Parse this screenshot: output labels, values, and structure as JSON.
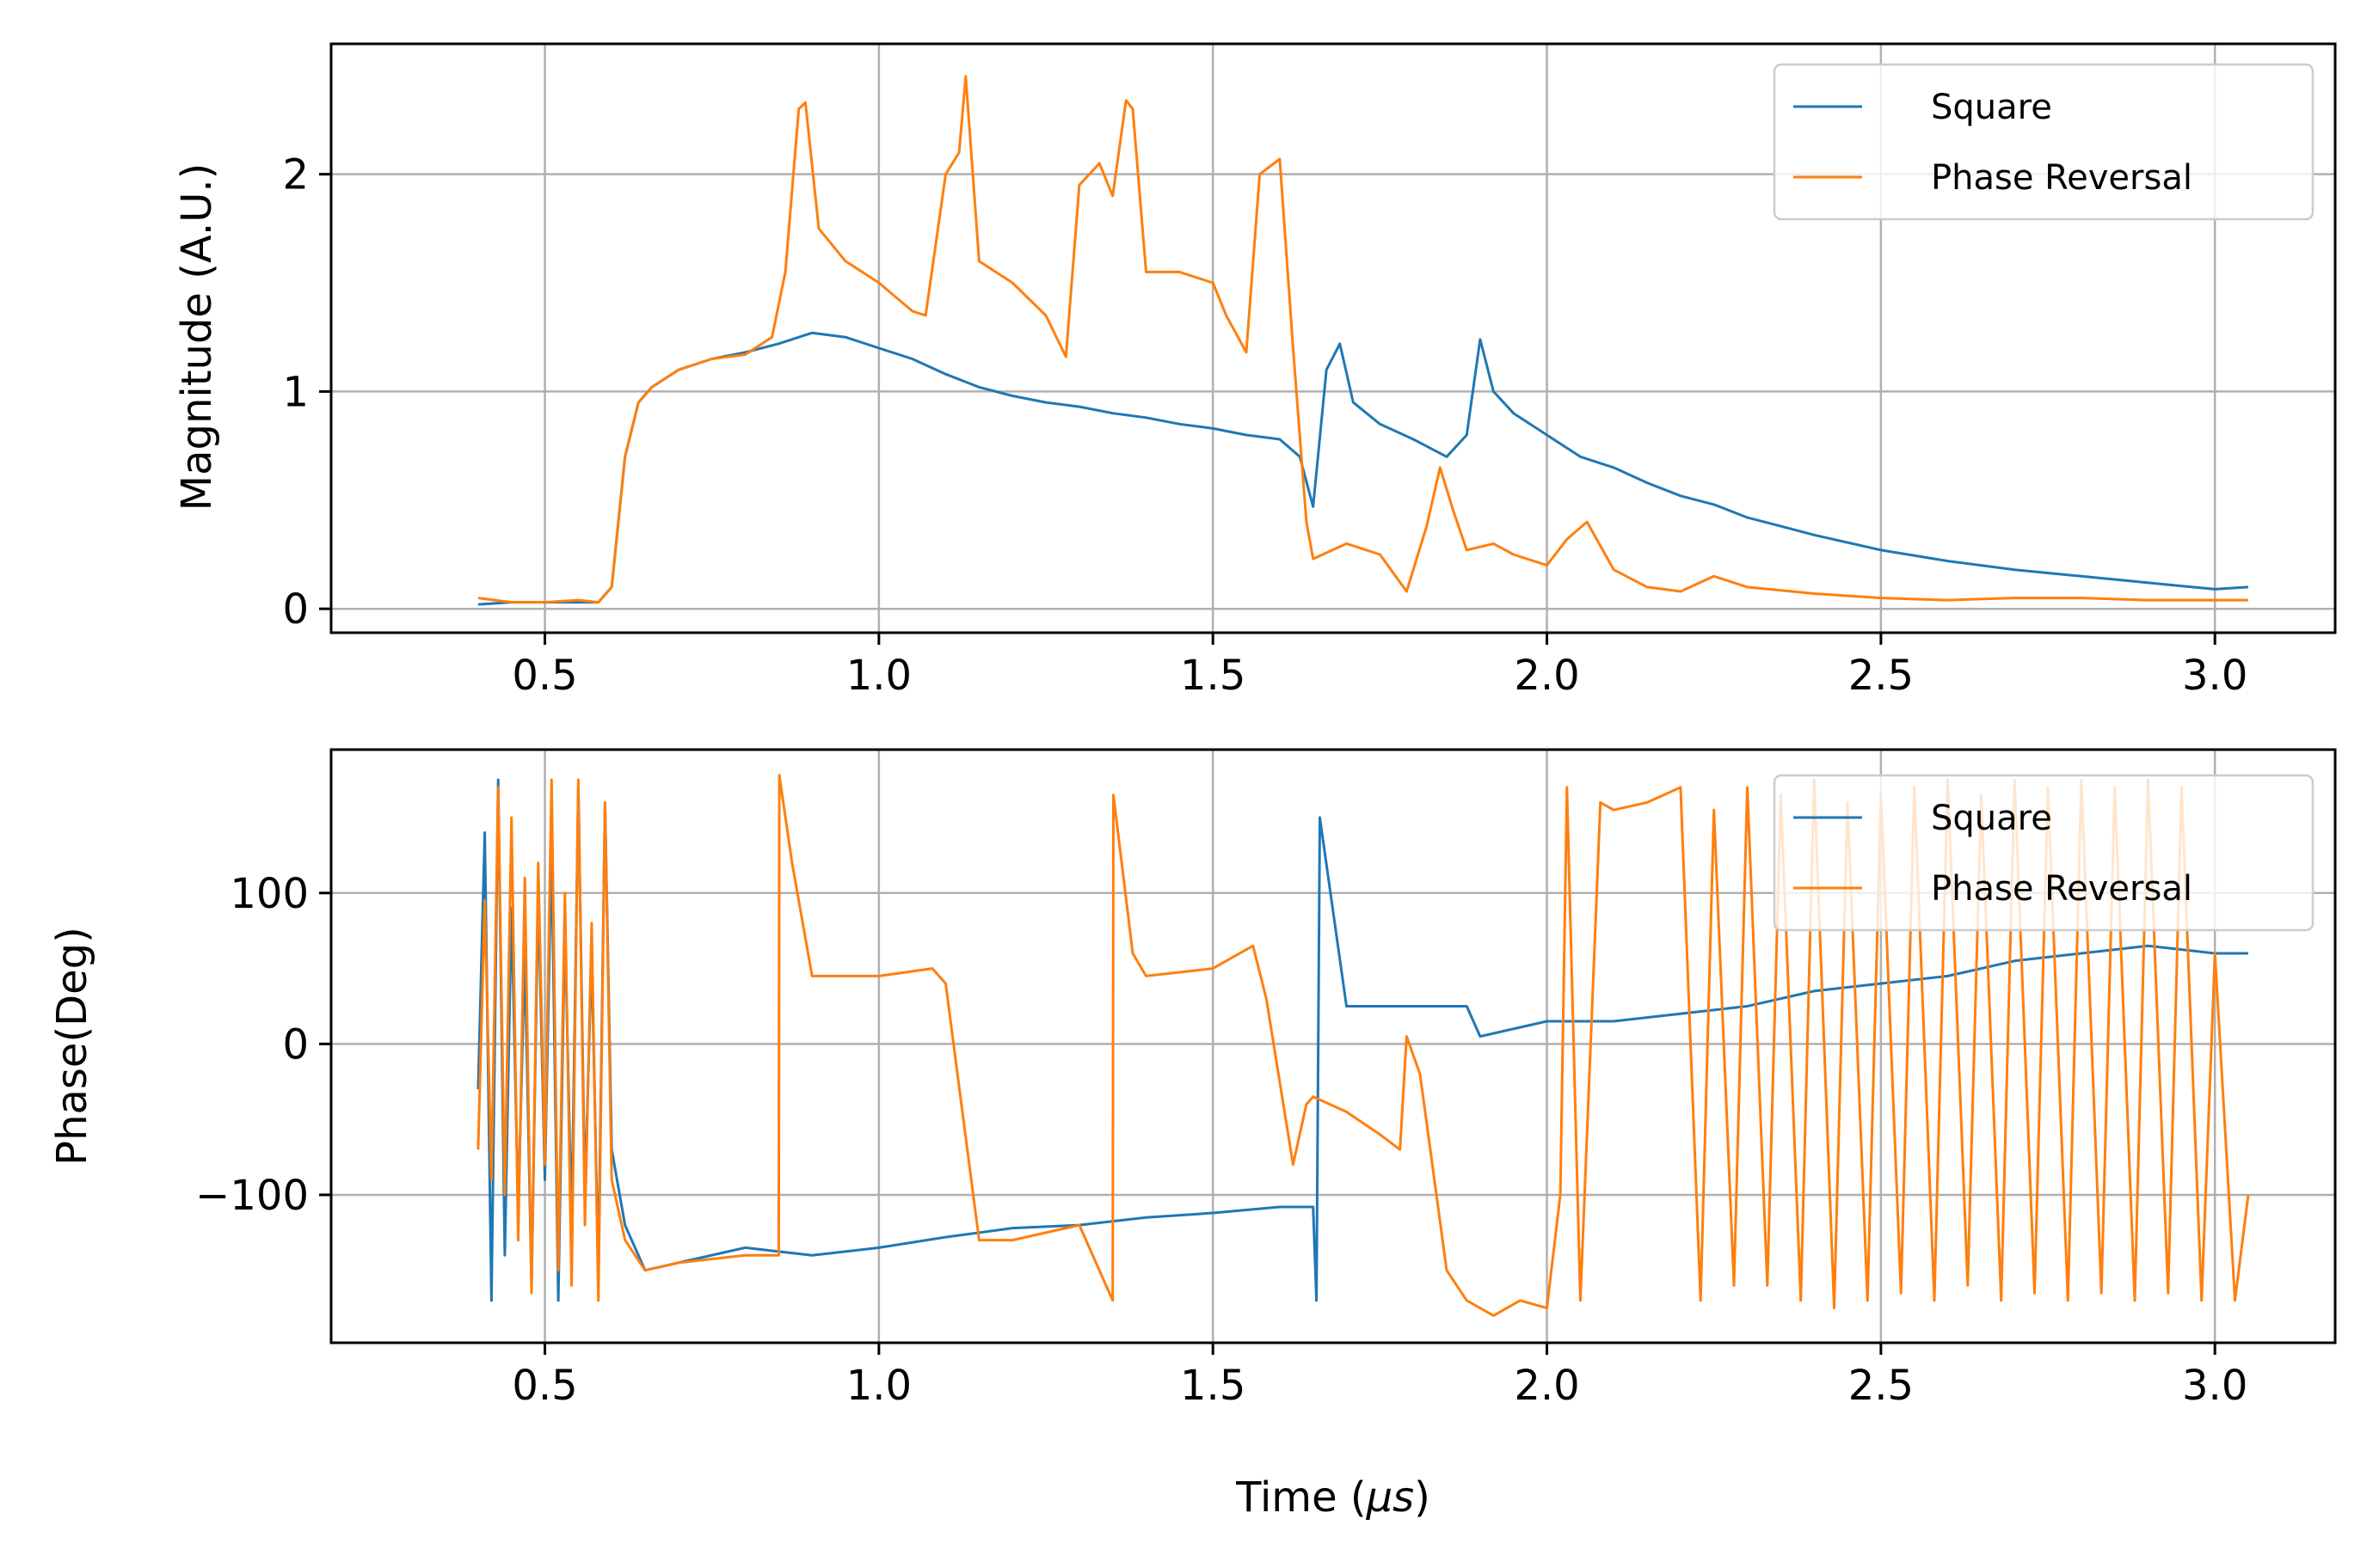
{
  "chart_data": [
    {
      "type": "line",
      "ylabel": "Magnitude (A.U.)",
      "xlabel": "",
      "xlim": [
        0.18,
        3.18
      ],
      "ylim": [
        -0.11,
        2.6
      ],
      "xticks": [
        0.5,
        1.0,
        1.5,
        2.0,
        2.5,
        3.0
      ],
      "xtick_labels": [
        "0.5",
        "1.0",
        "1.5",
        "2.0",
        "2.5",
        "3.0"
      ],
      "yticks": [
        0,
        1,
        2
      ],
      "ytick_labels": [
        "0",
        "1",
        "2"
      ],
      "grid": true,
      "legend_position": "top-right",
      "series": [
        {
          "name": "Square",
          "color": "#1f77b4",
          "x": [
            0.4,
            0.45,
            0.5,
            0.55,
            0.58,
            0.6,
            0.62,
            0.64,
            0.66,
            0.7,
            0.75,
            0.8,
            0.85,
            0.9,
            0.95,
            1.0,
            1.05,
            1.1,
            1.15,
            1.2,
            1.25,
            1.3,
            1.35,
            1.4,
            1.45,
            1.5,
            1.55,
            1.6,
            1.63,
            1.65,
            1.67,
            1.69,
            1.71,
            1.75,
            1.8,
            1.85,
            1.88,
            1.9,
            1.92,
            1.95,
            2.0,
            2.05,
            2.1,
            2.15,
            2.2,
            2.25,
            2.3,
            2.35,
            2.4,
            2.5,
            2.6,
            2.7,
            2.8,
            2.9,
            3.0,
            3.05
          ],
          "y": [
            0.02,
            0.03,
            0.03,
            0.03,
            0.03,
            0.1,
            0.7,
            0.95,
            1.02,
            1.1,
            1.15,
            1.18,
            1.22,
            1.27,
            1.25,
            1.2,
            1.15,
            1.08,
            1.02,
            0.98,
            0.95,
            0.93,
            0.9,
            0.88,
            0.85,
            0.83,
            0.8,
            0.78,
            0.7,
            0.47,
            1.1,
            1.22,
            0.95,
            0.85,
            0.78,
            0.7,
            0.8,
            1.24,
            1.0,
            0.9,
            0.8,
            0.7,
            0.65,
            0.58,
            0.52,
            0.48,
            0.42,
            0.38,
            0.34,
            0.27,
            0.22,
            0.18,
            0.15,
            0.12,
            0.09,
            0.1
          ]
        },
        {
          "name": "Phase Reversal",
          "color": "#ff7f0e",
          "x": [
            0.4,
            0.45,
            0.5,
            0.55,
            0.58,
            0.6,
            0.62,
            0.64,
            0.66,
            0.7,
            0.75,
            0.8,
            0.84,
            0.86,
            0.88,
            0.89,
            0.91,
            0.95,
            1.0,
            1.05,
            1.07,
            1.1,
            1.12,
            1.13,
            1.15,
            1.2,
            1.25,
            1.28,
            1.3,
            1.33,
            1.35,
            1.37,
            1.38,
            1.4,
            1.45,
            1.5,
            1.52,
            1.55,
            1.57,
            1.6,
            1.62,
            1.64,
            1.65,
            1.7,
            1.75,
            1.79,
            1.82,
            1.84,
            1.86,
            1.88,
            1.92,
            1.95,
            2.0,
            2.03,
            2.06,
            2.1,
            2.15,
            2.2,
            2.25,
            2.3,
            2.4,
            2.5,
            2.6,
            2.7,
            2.8,
            2.9,
            3.0,
            3.05
          ],
          "y": [
            0.05,
            0.03,
            0.03,
            0.04,
            0.03,
            0.1,
            0.7,
            0.95,
            1.02,
            1.1,
            1.15,
            1.17,
            1.25,
            1.55,
            2.3,
            2.33,
            1.75,
            1.6,
            1.5,
            1.37,
            1.35,
            2.0,
            2.1,
            2.45,
            1.6,
            1.5,
            1.35,
            1.16,
            1.95,
            2.05,
            1.9,
            2.34,
            2.3,
            1.55,
            1.55,
            1.5,
            1.35,
            1.18,
            2.0,
            2.07,
            1.2,
            0.4,
            0.23,
            0.3,
            0.25,
            0.08,
            0.38,
            0.65,
            0.45,
            0.27,
            0.3,
            0.25,
            0.2,
            0.32,
            0.4,
            0.18,
            0.1,
            0.08,
            0.15,
            0.1,
            0.07,
            0.05,
            0.04,
            0.05,
            0.05,
            0.04,
            0.04,
            0.04
          ]
        }
      ]
    },
    {
      "type": "line",
      "ylabel": "Phase(Deg)",
      "xlabel": "Time (",
      "xlabel_unit": "μs",
      "xlabel_close": ")",
      "xlim": [
        0.18,
        3.18
      ],
      "ylim": [
        -198,
        195
      ],
      "xticks": [
        0.5,
        1.0,
        1.5,
        2.0,
        2.5,
        3.0
      ],
      "xtick_labels": [
        "0.5",
        "1.0",
        "1.5",
        "2.0",
        "2.5",
        "3.0"
      ],
      "yticks": [
        100,
        0,
        -100
      ],
      "ytick_labels": [
        "100",
        "0",
        "−100"
      ],
      "grid": true,
      "legend_position": "top-right",
      "series": [
        {
          "name": "Square",
          "color": "#1f77b4",
          "x": [
            0.4,
            0.41,
            0.42,
            0.43,
            0.44,
            0.45,
            0.46,
            0.47,
            0.48,
            0.49,
            0.5,
            0.51,
            0.52,
            0.53,
            0.54,
            0.55,
            0.56,
            0.57,
            0.58,
            0.59,
            0.6,
            0.62,
            0.65,
            0.7,
            0.8,
            0.9,
            1.0,
            1.1,
            1.2,
            1.3,
            1.4,
            1.5,
            1.6,
            1.65,
            1.655,
            1.66,
            1.7,
            1.8,
            1.88,
            1.9,
            2.0,
            2.1,
            2.2,
            2.3,
            2.4,
            2.5,
            2.6,
            2.7,
            2.8,
            2.9,
            3.0,
            3.05
          ],
          "y": [
            -30,
            140,
            -170,
            175,
            -140,
            90,
            -110,
            60,
            -160,
            100,
            -90,
            130,
            -170,
            80,
            -120,
            170,
            -100,
            60,
            -150,
            160,
            -70,
            -120,
            -150,
            -145,
            -135,
            -140,
            -135,
            -128,
            -122,
            -120,
            -115,
            -112,
            -108,
            -108,
            -170,
            150,
            25,
            25,
            25,
            5,
            15,
            15,
            20,
            25,
            35,
            40,
            45,
            55,
            60,
            65,
            60,
            60
          ]
        },
        {
          "name": "Phase Reversal",
          "color": "#ff7f0e",
          "x": [
            0.4,
            0.41,
            0.42,
            0.43,
            0.44,
            0.45,
            0.46,
            0.47,
            0.48,
            0.49,
            0.5,
            0.51,
            0.52,
            0.53,
            0.54,
            0.55,
            0.56,
            0.57,
            0.58,
            0.59,
            0.6,
            0.62,
            0.65,
            0.7,
            0.8,
            0.85,
            0.851,
            0.87,
            0.9,
            1.0,
            1.08,
            1.1,
            1.15,
            1.2,
            1.3,
            1.35,
            1.351,
            1.38,
            1.4,
            1.5,
            1.56,
            1.58,
            1.62,
            1.64,
            1.65,
            1.7,
            1.75,
            1.78,
            1.79,
            1.81,
            1.85,
            1.88,
            1.92,
            1.96,
            2.0,
            2.02,
            2.03,
            2.05,
            2.08,
            2.1,
            2.15,
            2.2,
            2.23,
            2.25,
            2.28,
            2.3,
            2.33,
            2.35,
            2.38,
            2.4,
            2.43,
            2.45,
            2.48,
            2.5,
            2.53,
            2.55,
            2.58,
            2.6,
            2.63,
            2.65,
            2.68,
            2.7,
            2.73,
            2.75,
            2.78,
            2.8,
            2.83,
            2.85,
            2.88,
            2.9,
            2.93,
            2.95,
            2.98,
            3.0,
            3.03,
            3.05
          ],
          "y": [
            -70,
            95,
            -90,
            170,
            -100,
            150,
            -130,
            110,
            -165,
            120,
            -80,
            175,
            -150,
            100,
            -160,
            175,
            -120,
            80,
            -170,
            160,
            -90,
            -130,
            -150,
            -145,
            -140,
            -140,
            178,
            120,
            45,
            45,
            50,
            40,
            -130,
            -130,
            -120,
            -170,
            165,
            60,
            45,
            50,
            65,
            30,
            -80,
            -40,
            -35,
            -45,
            -60,
            -70,
            5,
            -20,
            -150,
            -170,
            -180,
            -170,
            -175,
            -100,
            170,
            -170,
            160,
            155,
            160,
            170,
            -170,
            155,
            -160,
            170,
            -160,
            165,
            -170,
            175,
            -175,
            160,
            -170,
            165,
            -165,
            170,
            -170,
            175,
            -160,
            165,
            -170,
            175,
            -165,
            170,
            -170,
            175,
            -165,
            170,
            -170,
            175,
            -165,
            170,
            -170,
            60,
            -170,
            -100
          ]
        }
      ]
    }
  ],
  "legend": {
    "square_label": "Square",
    "phase_label": "Phase Reversal"
  }
}
